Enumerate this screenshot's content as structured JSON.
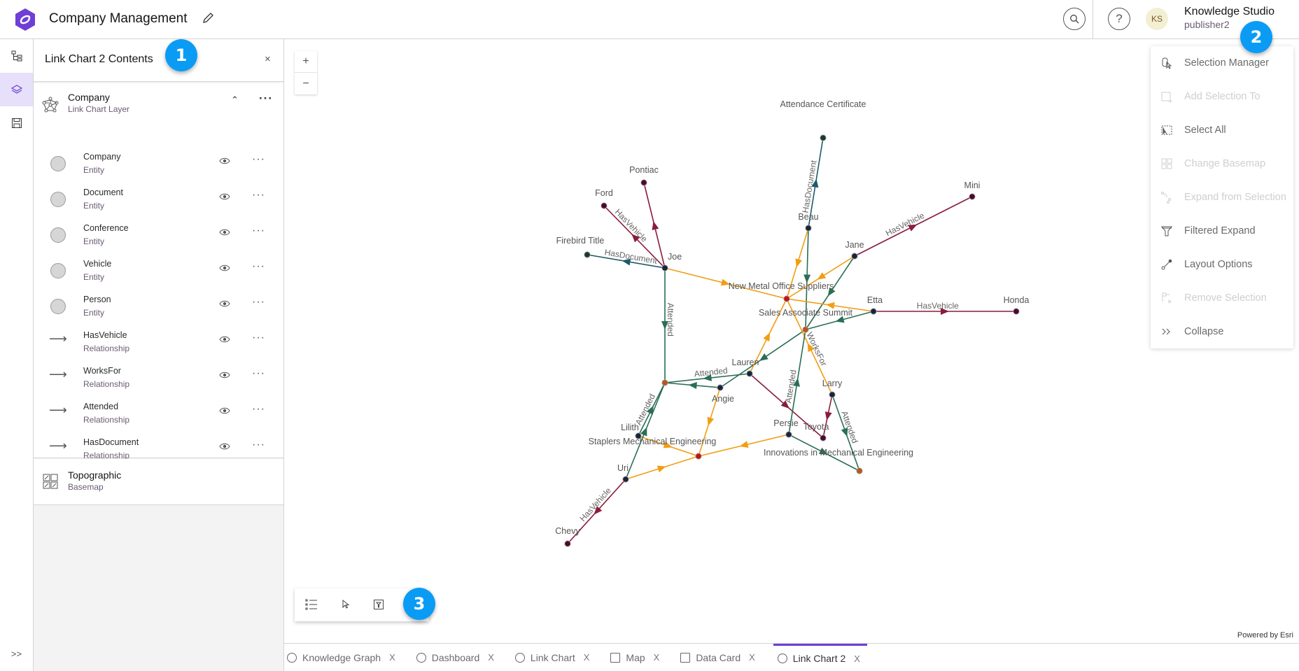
{
  "header": {
    "title": "Company Management",
    "user_initials": "KS",
    "user_name": "Knowledge Studio",
    "user_login": "publisher2"
  },
  "panel": {
    "title": "Link Chart 2 Contents",
    "layer": {
      "name": "Company",
      "type": "Link Chart Layer"
    },
    "items": [
      {
        "name": "Company",
        "type": "Entity",
        "kind": "entity"
      },
      {
        "name": "Document",
        "type": "Entity",
        "kind": "entity"
      },
      {
        "name": "Conference",
        "type": "Entity",
        "kind": "entity"
      },
      {
        "name": "Vehicle",
        "type": "Entity",
        "kind": "entity"
      },
      {
        "name": "Person",
        "type": "Entity",
        "kind": "entity"
      },
      {
        "name": "HasVehicle",
        "type": "Relationship",
        "kind": "relationship"
      },
      {
        "name": "WorksFor",
        "type": "Relationship",
        "kind": "relationship"
      },
      {
        "name": "Attended",
        "type": "Relationship",
        "kind": "relationship"
      },
      {
        "name": "HasDocument",
        "type": "Relationship",
        "kind": "relationship"
      }
    ],
    "basemap": {
      "name": "Topographic",
      "type": "Basemap"
    }
  },
  "badges": [
    "1",
    "2",
    "3"
  ],
  "menu": [
    {
      "label": "Selection Manager",
      "enabled": true,
      "icon": "selection-manager-icon"
    },
    {
      "label": "Add Selection To",
      "enabled": false,
      "icon": "add-selection-icon"
    },
    {
      "label": "Select All",
      "enabled": true,
      "icon": "select-all-icon"
    },
    {
      "label": "Change Basemap",
      "enabled": false,
      "icon": "basemap-icon"
    },
    {
      "label": "Expand from Selection",
      "enabled": false,
      "icon": "expand-icon"
    },
    {
      "label": "Filtered Expand",
      "enabled": true,
      "icon": "filter-icon"
    },
    {
      "label": "Layout Options",
      "enabled": true,
      "icon": "layout-icon"
    },
    {
      "label": "Remove Selection",
      "enabled": false,
      "icon": "remove-selection-icon"
    },
    {
      "label": "Collapse",
      "enabled": true,
      "icon": "collapse-icon"
    }
  ],
  "zoom": {
    "in": "+",
    "out": "−"
  },
  "attribution": "Powered by Esri",
  "tabs": [
    {
      "label": "Knowledge Graph",
      "icon": "knowledge-graph-icon",
      "active": false
    },
    {
      "label": "Dashboard",
      "icon": "dashboard-icon",
      "active": false
    },
    {
      "label": "Link Chart",
      "icon": "link-chart-icon",
      "active": false
    },
    {
      "label": "Map",
      "icon": "map-icon",
      "active": false
    },
    {
      "label": "Data Card",
      "icon": "data-card-icon",
      "active": false
    },
    {
      "label": "Link Chart 2",
      "icon": "link-chart-icon",
      "active": true
    }
  ],
  "colors": {
    "accent": "#6e3ed6",
    "badge": "#0a9cf5",
    "HasVehicle": "#8a1c3c",
    "WorksFor": "#f29d12",
    "Attended": "#2a6e55",
    "HasDocument": "#1d5a68",
    "Person": "#17263a",
    "Vehicle": "#4a0a2e",
    "Company": "#c0141c",
    "Conference": "#b8561c",
    "Document": "#1a3a30"
  },
  "graph": {
    "nodes": [
      {
        "id": "joe",
        "label": "Joe",
        "type": "Person"
      },
      {
        "id": "beau",
        "label": "Beau",
        "type": "Person"
      },
      {
        "id": "jane",
        "label": "Jane",
        "type": "Person"
      },
      {
        "id": "etta",
        "label": "Etta",
        "type": "Person"
      },
      {
        "id": "lauren",
        "label": "Lauren",
        "type": "Person"
      },
      {
        "id": "angie",
        "label": "Angie",
        "type": "Person"
      },
      {
        "id": "larry",
        "label": "Larry",
        "type": "Person"
      },
      {
        "id": "lilith",
        "label": "Lilith",
        "type": "Person"
      },
      {
        "id": "persie",
        "label": "Persie",
        "type": "Person"
      },
      {
        "id": "uri",
        "label": "Uri",
        "type": "Person"
      },
      {
        "id": "pontiac",
        "label": "Pontiac",
        "type": "Vehicle"
      },
      {
        "id": "ford",
        "label": "Ford",
        "type": "Vehicle"
      },
      {
        "id": "mini",
        "label": "Mini",
        "type": "Vehicle"
      },
      {
        "id": "honda",
        "label": "Honda",
        "type": "Vehicle"
      },
      {
        "id": "toyota",
        "label": "Toyota",
        "type": "Vehicle"
      },
      {
        "id": "chevy",
        "label": "Chevy",
        "type": "Vehicle"
      },
      {
        "id": "firebird",
        "label": "Firebird Title",
        "type": "Document"
      },
      {
        "id": "attcert",
        "label": "Attendance Certificate",
        "type": "Document"
      },
      {
        "id": "nmos",
        "label": "New Metal Office Suppliers",
        "type": "Company"
      },
      {
        "id": "stapler",
        "label": "Staplers Mechanical Engineering",
        "type": "Company"
      },
      {
        "id": "sas",
        "label": "Sales Associate Summit",
        "type": "Conference"
      },
      {
        "id": "innov",
        "label": "Innovations in Mechanical Engineering",
        "type": "Conference"
      },
      {
        "id": "conf1",
        "label": "",
        "type": "Conference"
      }
    ],
    "edges": [
      {
        "from": "joe",
        "to": "pontiac",
        "type": "HasVehicle",
        "label": ""
      },
      {
        "from": "joe",
        "to": "ford",
        "type": "HasVehicle",
        "label": "HasVehicle"
      },
      {
        "from": "joe",
        "to": "firebird",
        "type": "HasDocument",
        "label": "HasDocument"
      },
      {
        "from": "joe",
        "to": "nmos",
        "type": "WorksFor",
        "label": ""
      },
      {
        "from": "joe",
        "to": "conf1",
        "type": "Attended",
        "label": "Attended"
      },
      {
        "from": "beau",
        "to": "attcert",
        "type": "HasDocument",
        "label": "HasDocument"
      },
      {
        "from": "beau",
        "to": "nmos",
        "type": "WorksFor",
        "label": ""
      },
      {
        "from": "beau",
        "to": "sas",
        "type": "Attended",
        "label": ""
      },
      {
        "from": "jane",
        "to": "mini",
        "type": "HasVehicle",
        "label": "HasVehicle"
      },
      {
        "from": "jane",
        "to": "nmos",
        "type": "WorksFor",
        "label": ""
      },
      {
        "from": "jane",
        "to": "sas",
        "type": "Attended",
        "label": ""
      },
      {
        "from": "etta",
        "to": "honda",
        "type": "HasVehicle",
        "label": "HasVehicle"
      },
      {
        "from": "etta",
        "to": "nmos",
        "type": "WorksFor",
        "label": ""
      },
      {
        "from": "etta",
        "to": "sas",
        "type": "Attended",
        "label": ""
      },
      {
        "from": "sas",
        "to": "angie",
        "type": "Attended",
        "label": ""
      },
      {
        "from": "lauren",
        "to": "nmos",
        "type": "WorksFor",
        "label": ""
      },
      {
        "from": "lauren",
        "to": "conf1",
        "type": "Attended",
        "label": "Attended"
      },
      {
        "from": "lauren",
        "to": "toyota",
        "type": "HasVehicle",
        "label": ""
      },
      {
        "from": "angie",
        "to": "conf1",
        "type": "Attended",
        "label": ""
      },
      {
        "from": "angie",
        "to": "stapler",
        "type": "WorksFor",
        "label": ""
      },
      {
        "from": "larry",
        "to": "nmos",
        "type": "WorksFor",
        "label": "WorksFor"
      },
      {
        "from": "larry",
        "to": "toyota",
        "type": "HasVehicle",
        "label": ""
      },
      {
        "from": "larry",
        "to": "innov",
        "type": "Attended",
        "label": "Attended"
      },
      {
        "from": "persie",
        "to": "sas",
        "type": "Attended",
        "label": "Attended"
      },
      {
        "from": "persie",
        "to": "innov",
        "type": "Attended",
        "label": ""
      },
      {
        "from": "persie",
        "to": "stapler",
        "type": "WorksFor",
        "label": ""
      },
      {
        "from": "lilith",
        "to": "conf1",
        "type": "Attended",
        "label": "Attended"
      },
      {
        "from": "lilith",
        "to": "stapler",
        "type": "WorksFor",
        "label": ""
      },
      {
        "from": "uri",
        "to": "conf1",
        "type": "Attended",
        "label": ""
      },
      {
        "from": "uri",
        "to": "stapler",
        "type": "WorksFor",
        "label": ""
      },
      {
        "from": "uri",
        "to": "chevy",
        "type": "HasVehicle",
        "label": "HasVehicle"
      }
    ]
  }
}
